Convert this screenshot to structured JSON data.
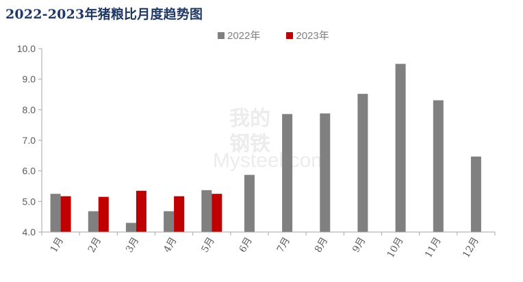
{
  "chart_data": {
    "type": "bar",
    "title": "2022-2023年猪粮比月度趋势图",
    "categories": [
      "1月",
      "2月",
      "3月",
      "4月",
      "5月",
      "6月",
      "7月",
      "8月",
      "9月",
      "10月",
      "11月",
      "12月"
    ],
    "series": [
      {
        "name": "2022年",
        "color": "#808080",
        "values": [
          5.25,
          4.68,
          4.3,
          4.68,
          5.37,
          5.87,
          7.86,
          7.88,
          8.52,
          9.5,
          8.31,
          6.47
        ]
      },
      {
        "name": "2023年",
        "color": "#c00000",
        "values": [
          5.17,
          5.15,
          5.35,
          5.17,
          5.25,
          null,
          null,
          null,
          null,
          null,
          null,
          null
        ]
      }
    ],
    "ylim": [
      4.0,
      10.0
    ],
    "yticks": [
      "4.0",
      "5.0",
      "6.0",
      "7.0",
      "8.0",
      "9.0",
      "10.0"
    ],
    "xlabel": "",
    "ylabel": "",
    "grid": false,
    "legend": "top"
  },
  "watermark": {
    "cn_top": "我的",
    "cn_bottom": "钢铁",
    "latin": "Mysteel.com"
  }
}
